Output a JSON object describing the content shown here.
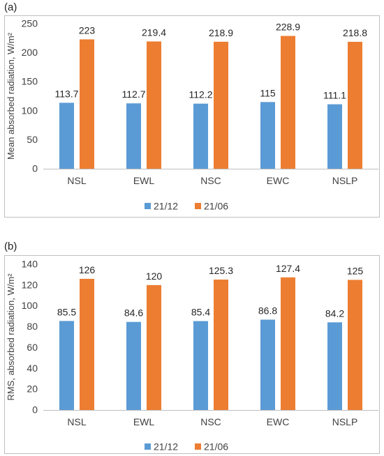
{
  "panels": [
    {
      "label": "(a)"
    },
    {
      "label": "(b)"
    }
  ],
  "chart_data": [
    {
      "type": "bar",
      "categories": [
        "NSL",
        "EWL",
        "NSC",
        "EWC",
        "NSLP"
      ],
      "series": [
        {
          "name": "21/12",
          "values": [
            113.7,
            112.7,
            112.2,
            115,
            111.1
          ],
          "labels": [
            "113.7",
            "112.7",
            "112.2",
            "115",
            "111.1"
          ],
          "color": "#5b9bd5"
        },
        {
          "name": "21/06",
          "values": [
            223,
            219.4,
            218.9,
            228.9,
            218.8
          ],
          "labels": [
            "223",
            "219.4",
            "218.9",
            "228.9",
            "218.8"
          ],
          "color": "#ed7d31"
        }
      ],
      "ylabel": "Mean absorbed radiation, W/m²",
      "ylim": [
        0,
        250
      ],
      "yticks": [
        0,
        50,
        100,
        150,
        200,
        250
      ],
      "grid": false,
      "legend": "bottom"
    },
    {
      "type": "bar",
      "categories": [
        "NSL",
        "EWL",
        "NSC",
        "EWC",
        "NSLP"
      ],
      "series": [
        {
          "name": "21/12",
          "values": [
            85.5,
            84.6,
            85.4,
            86.8,
            84.2
          ],
          "labels": [
            "85.5",
            "84.6",
            "85.4",
            "86.8",
            "84.2"
          ],
          "color": "#5b9bd5"
        },
        {
          "name": "21/06",
          "values": [
            126,
            120,
            125.3,
            127.4,
            125
          ],
          "labels": [
            "126",
            "120",
            "125.3",
            "127.4",
            "125"
          ],
          "color": "#ed7d31"
        }
      ],
      "ylabel": "RMS, absorbed radiation, W/m²",
      "ylim": [
        0,
        140
      ],
      "yticks": [
        0,
        20,
        40,
        60,
        80,
        100,
        120,
        140
      ],
      "grid": false,
      "legend": "bottom"
    }
  ]
}
